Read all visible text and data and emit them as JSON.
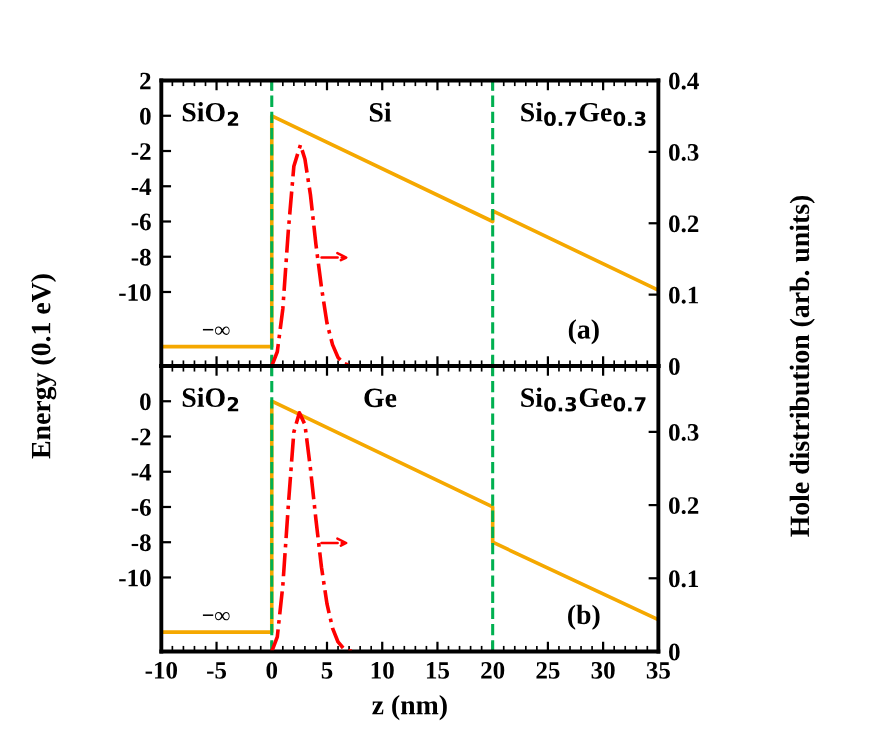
{
  "chart_data": [
    {
      "type": "line",
      "x": [
        -10,
        0,
        0,
        20,
        20,
        35
      ],
      "xlim": [
        -10,
        35
      ],
      "xticks": [
        -10,
        -5,
        0,
        5,
        10,
        15,
        20,
        25,
        30,
        35
      ],
      "ylim": [
        -14.2,
        2
      ],
      "yticks": [
        2,
        0,
        -2,
        -4,
        -6,
        -8,
        -10
      ],
      "y2lim": [
        0,
        0.4
      ],
      "y2ticks": [
        0,
        0.1,
        0.2,
        0.3,
        0.4
      ],
      "ylabel": "Energy (0.1 eV)",
      "y2label": "Hole distribution (arb. units)",
      "tick_labels": "y",
      "grid": false,
      "legend": false,
      "series": [
        {
          "color": "#f5a800",
          "line_style": "solid",
          "values": [
            -13.1,
            -13.1,
            0,
            -6,
            -5.4,
            -9.9
          ]
        },
        {
          "color": "#ff0000",
          "line_style": "dashdot",
          "axis": "y2",
          "x": [
            0,
            0.5,
            1,
            1.5,
            2,
            2.6,
            3,
            3.5,
            4,
            4.5,
            5,
            5.5,
            6,
            6.5,
            7,
            7.5
          ],
          "values": [
            0,
            0.02,
            0.08,
            0.19,
            0.28,
            0.31,
            0.29,
            0.24,
            0.17,
            0.11,
            0.06,
            0.03,
            0.012,
            0.004,
            0.001,
            0
          ]
        }
      ],
      "ref_lines": [
        {
          "axis": "x",
          "value": 0,
          "color": "#00b050",
          "line_style": "dashed"
        },
        {
          "axis": "x",
          "value": 20,
          "color": "#00b050",
          "line_style": "dashed"
        }
      ],
      "annotations": [
        "SiO$_{2}$",
        "Si",
        "Si$_{0.7}$Ge$_{0.3}$",
        "−∞",
        "(a)"
      ]
    },
    {
      "type": "line",
      "x": [
        -10,
        0,
        0,
        20,
        20,
        35
      ],
      "xlim": [
        -10,
        35
      ],
      "xticks": [
        -10,
        -5,
        0,
        5,
        10,
        15,
        20,
        25,
        30,
        35
      ],
      "ylim": [
        -14.2,
        2
      ],
      "yticks": [
        0,
        -2,
        -4,
        -6,
        -8,
        -10
      ],
      "y2lim": [
        0,
        0.39
      ],
      "y2ticks": [
        0,
        0.1,
        0.2,
        0.3
      ],
      "xlabel": "z (nm)",
      "grid": false,
      "legend": false,
      "series": [
        {
          "color": "#f5a800",
          "line_style": "solid",
          "values": [
            -13.1,
            -13.1,
            0,
            -6,
            -8,
            -12.4
          ]
        },
        {
          "color": "#ff0000",
          "line_style": "dashdot",
          "axis": "y2",
          "x": [
            0,
            0.5,
            1,
            1.5,
            2,
            2.5,
            3,
            3.5,
            4,
            4.5,
            5,
            5.5,
            6,
            6.5,
            7,
            7.5
          ],
          "values": [
            0,
            0.02,
            0.09,
            0.2,
            0.3,
            0.326,
            0.31,
            0.25,
            0.18,
            0.115,
            0.065,
            0.032,
            0.013,
            0.004,
            0.001,
            0
          ]
        }
      ],
      "ref_lines": [
        {
          "axis": "x",
          "value": 0,
          "color": "#00b050",
          "line_style": "dashed"
        },
        {
          "axis": "x",
          "value": 20,
          "color": "#00b050",
          "line_style": "dashed"
        }
      ],
      "annotations": [
        "SiO$_{2}$",
        "Ge",
        "Si$_{0.3}$Ge$_{0.7}$",
        "−∞",
        "(b)"
      ]
    }
  ]
}
